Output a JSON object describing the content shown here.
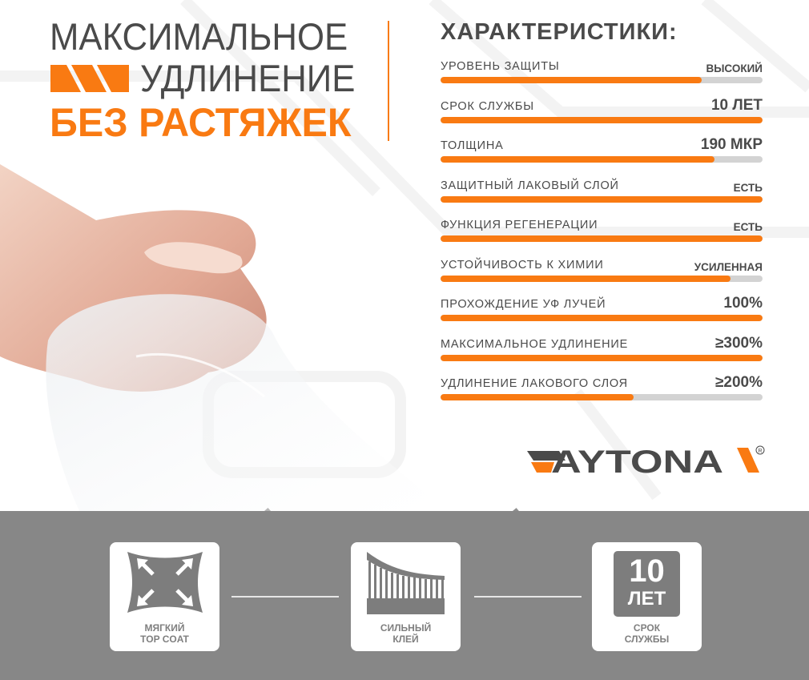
{
  "headline": {
    "line1": "МАКСИМАЛЬНОЕ",
    "line2": "УДЛИНЕНИЕ",
    "line3": "БЕЗ РАСТЯЖЕК"
  },
  "specs": {
    "title": "ХАРАКТЕРИСТИКИ:",
    "items": [
      {
        "label": "УРОВЕНЬ ЗАЩИТЫ",
        "value": "ВЫСОКИЙ",
        "level": 0.81
      },
      {
        "label": "СРОК СЛУЖБЫ",
        "value": "10 ЛЕТ",
        "level": 1.0
      },
      {
        "label": "ТОЛЩИНА",
        "value": "190 МКР",
        "level": 0.85
      },
      {
        "label": "ЗАЩИТНЫЙ ЛАКОВЫЙ СЛОЙ",
        "value": "ЕСТЬ",
        "level": 1.0
      },
      {
        "label": "ФУНКЦИЯ РЕГЕНЕРАЦИИ",
        "value": "ЕСТЬ",
        "level": 1.0
      },
      {
        "label": "УСТОЙЧИВОСТЬ К ХИМИИ",
        "value": "УСИЛЕННАЯ",
        "level": 0.9
      },
      {
        "label": "ПРОХОЖДЕНИЕ УФ ЛУЧЕЙ",
        "value": "100%",
        "level": 1.0
      },
      {
        "label": "МАКСИМАЛЬНОЕ УДЛИНЕНИЕ",
        "value": "≥300%",
        "level": 1.0
      },
      {
        "label": "УДЛИНЕНИЕ ЛАКОВОГО СЛОЯ",
        "value": "≥200%",
        "level": 0.6
      }
    ]
  },
  "brand": {
    "logo_text": "DAYTONA",
    "registered": "®"
  },
  "features": [
    {
      "line1": "МЯГКИЙ",
      "line2": "TOP COAT",
      "icon": "stretch-arrows-icon"
    },
    {
      "line1": "СИЛЬНЫЙ",
      "line2": "КЛЕЙ",
      "icon": "adhesive-strands-icon"
    },
    {
      "line1": "СРОК",
      "line2": "СЛУЖБЫ",
      "icon": "years-badge-icon",
      "badge_number": "10",
      "badge_unit": "ЛЕТ"
    }
  ],
  "colors": {
    "accent": "#f97a12",
    "text": "#4a4a4a",
    "bottom_band": "#878787",
    "track": "#d3d3d3"
  }
}
